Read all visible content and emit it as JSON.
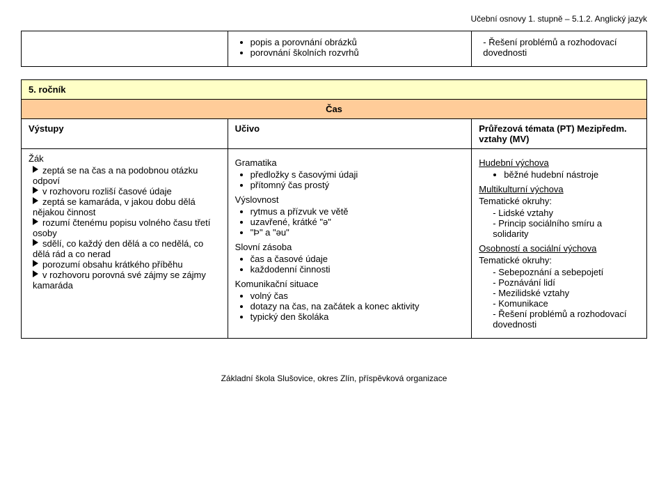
{
  "header": "Učební osnovy 1. stupně – 5.1.2. Anglický jazyk",
  "topRow": {
    "midBullets": [
      "popis a porovnání obrázků",
      "porovnání školních rozvrhů"
    ],
    "rightDashes": [
      "Řešení problémů a rozhodovací dovednosti"
    ]
  },
  "grade": "5. ročník",
  "cas": "Čas",
  "headings": {
    "left": "Výstupy",
    "mid": "Učivo",
    "right": "Průřezová témata (PT) Mezipředm. vztahy (MV)"
  },
  "left": {
    "title": "Žák",
    "items": [
      "zeptá se na čas a na podobnou otázku odpoví",
      "v rozhovoru rozliší časové údaje",
      "zeptá se kamaráda, v jakou dobu dělá nějakou činnost",
      "rozumí čtenému popisu volného času třetí osoby",
      "sdělí, co každý den dělá a co nedělá, co dělá rád a co nerad",
      "porozumí obsahu krátkého příběhu",
      "v rozhovoru porovná své zájmy se zájmy kamaráda"
    ]
  },
  "mid": {
    "sections": [
      {
        "title": "Gramatika",
        "items": [
          "předložky s časovými údaji",
          "přítomný čas prostý"
        ]
      },
      {
        "title": "Výslovnost",
        "items": [
          "rytmus a přízvuk ve větě",
          "uzavřené, krátké \"ə\"",
          "\"Þ\" a \"əu\""
        ]
      },
      {
        "title": "Slovní zásoba",
        "items": [
          "čas a časové údaje",
          "každodenní činnosti"
        ]
      },
      {
        "title": "Komunikační situace",
        "items": [
          "volný čas",
          "dotazy na čas, na začátek a konec aktivity",
          "typický den školáka"
        ]
      }
    ]
  },
  "right": {
    "block1": {
      "title": "Hudební výchova",
      "items": [
        "běžné hudební nástroje"
      ]
    },
    "block2": {
      "title": "Multikulturní výchova",
      "sub": "Tematické okruhy:",
      "items": [
        "Lidské vztahy",
        "Princip sociálního smíru a solidarity"
      ]
    },
    "block3": {
      "title": "Osobností a sociální výchova",
      "sub": "Tematické okruhy:",
      "items": [
        "Sebepoznání a sebepojetí",
        "Poznávání lidí",
        "Mezilidské vztahy",
        "Komunikace",
        "Řešení problémů a rozhodovací dovednosti"
      ]
    }
  },
  "footer": "Základní škola Slušovice, okres Zlín, příspěvková organizace"
}
